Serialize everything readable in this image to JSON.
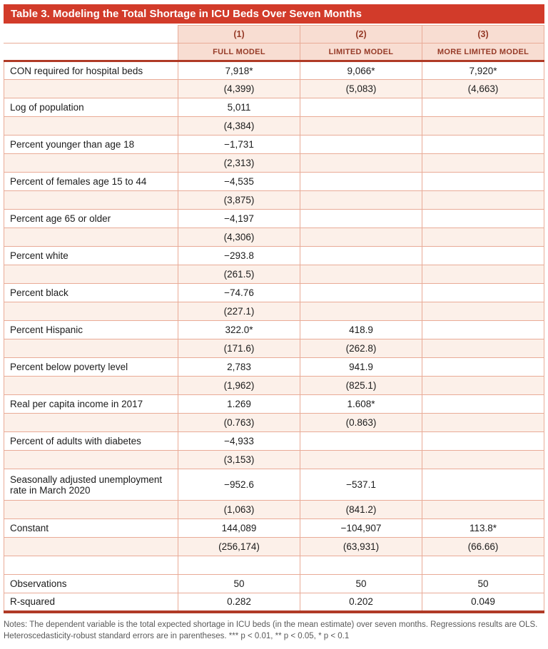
{
  "title": "Table 3. Modeling the Total Shortage in ICU Beds Over Seven Months",
  "colors": {
    "brand_red": "#d23b2a",
    "header_pink": "#f8ddd2",
    "header_text": "#963b28",
    "shaded_row": "#fcf0e9",
    "border_light": "#e9ab97",
    "border_heavy": "#b03a26"
  },
  "columns": [
    {
      "number": "(1)",
      "label": "FULL MODEL"
    },
    {
      "number": "(2)",
      "label": "LIMITED MODEL"
    },
    {
      "number": "(3)",
      "label": "MORE LIMITED MODEL"
    }
  ],
  "rows": [
    {
      "label": "CON required for hospital beds",
      "values": [
        "7,918*",
        "9,066*",
        "7,920*"
      ],
      "shaded": false
    },
    {
      "label": "",
      "values": [
        "(4,399)",
        "(5,083)",
        "(4,663)"
      ],
      "shaded": true
    },
    {
      "label": "Log of population",
      "values": [
        "5,011",
        "",
        ""
      ],
      "shaded": false
    },
    {
      "label": "",
      "values": [
        "(4,384)",
        "",
        ""
      ],
      "shaded": true
    },
    {
      "label": "Percent younger than age 18",
      "values": [
        "−1,731",
        "",
        ""
      ],
      "shaded": false
    },
    {
      "label": "",
      "values": [
        "(2,313)",
        "",
        ""
      ],
      "shaded": true
    },
    {
      "label": "Percent of females age 15 to 44",
      "values": [
        "−4,535",
        "",
        ""
      ],
      "shaded": false
    },
    {
      "label": "",
      "values": [
        "(3,875)",
        "",
        ""
      ],
      "shaded": true
    },
    {
      "label": "Percent age 65 or older",
      "values": [
        "−4,197",
        "",
        ""
      ],
      "shaded": false
    },
    {
      "label": "",
      "values": [
        "(4,306)",
        "",
        ""
      ],
      "shaded": true
    },
    {
      "label": "Percent white",
      "values": [
        "−293.8",
        "",
        ""
      ],
      "shaded": false
    },
    {
      "label": "",
      "values": [
        "(261.5)",
        "",
        ""
      ],
      "shaded": true
    },
    {
      "label": "Percent black",
      "values": [
        "−74.76",
        "",
        ""
      ],
      "shaded": false
    },
    {
      "label": "",
      "values": [
        "(227.1)",
        "",
        ""
      ],
      "shaded": true
    },
    {
      "label": "Percent Hispanic",
      "values": [
        "322.0*",
        "418.9",
        ""
      ],
      "shaded": false
    },
    {
      "label": "",
      "values": [
        "(171.6)",
        "(262.8)",
        ""
      ],
      "shaded": true
    },
    {
      "label": "Percent below poverty level",
      "values": [
        "2,783",
        "941.9",
        ""
      ],
      "shaded": false
    },
    {
      "label": "",
      "values": [
        "(1,962)",
        "(825.1)",
        ""
      ],
      "shaded": true
    },
    {
      "label": "Real per capita income in 2017",
      "values": [
        "1.269",
        "1.608*",
        ""
      ],
      "shaded": false
    },
    {
      "label": "",
      "values": [
        "(0.763)",
        "(0.863)",
        ""
      ],
      "shaded": true
    },
    {
      "label": "Percent of adults with diabetes",
      "values": [
        "−4,933",
        "",
        ""
      ],
      "shaded": false
    },
    {
      "label": "",
      "values": [
        "(3,153)",
        "",
        ""
      ],
      "shaded": true
    },
    {
      "label": "Seasonally adjusted unemployment rate in March 2020",
      "values": [
        "−952.6",
        "−537.1",
        ""
      ],
      "shaded": false,
      "tall": true
    },
    {
      "label": "",
      "values": [
        "(1,063)",
        "(841.2)",
        ""
      ],
      "shaded": true
    },
    {
      "label": "Constant",
      "values": [
        "144,089",
        "−104,907",
        "113.8*"
      ],
      "shaded": false
    },
    {
      "label": "",
      "values": [
        "(256,174)",
        "(63,931)",
        "(66.66)"
      ],
      "shaded": true
    },
    {
      "label": "",
      "values": [
        "",
        "",
        ""
      ],
      "shaded": false
    },
    {
      "label": "Observations",
      "values": [
        "50",
        "50",
        "50"
      ],
      "shaded": false
    },
    {
      "label": "R-squared",
      "values": [
        "0.282",
        "0.202",
        "0.049"
      ],
      "shaded": false
    }
  ],
  "notes": "Notes: The dependent variable is the total expected shortage in ICU beds (in the mean estimate) over seven months. Regressions results are OLS. Heteroscedasticity-robust standard errors are in parentheses. *** p < 0.01, ** p < 0.05, * p < 0.1"
}
